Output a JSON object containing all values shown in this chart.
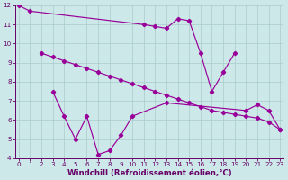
{
  "xlabel": "Windchill (Refroidissement éolien,°C)",
  "bg_color": "#cce8e8",
  "line_color": "#990099",
  "grid_color": "#aacccc",
  "line1_x": [
    0,
    1,
    11,
    12,
    13,
    14,
    15,
    16,
    17,
    18,
    19
  ],
  "line1_y": [
    12.0,
    11.7,
    11.0,
    10.9,
    10.8,
    11.3,
    11.2,
    9.5,
    7.5,
    8.5,
    9.5
  ],
  "line2_x": [
    2,
    3,
    4,
    5,
    6,
    7,
    8,
    9,
    10,
    11,
    12,
    13,
    14,
    15,
    16,
    17,
    18,
    19,
    20,
    21,
    22,
    23
  ],
  "line2_y": [
    9.5,
    9.3,
    9.1,
    8.9,
    8.7,
    8.5,
    8.3,
    8.1,
    7.9,
    7.7,
    7.5,
    7.3,
    7.1,
    6.9,
    6.7,
    6.5,
    6.4,
    6.3,
    6.2,
    6.1,
    5.9,
    5.5
  ],
  "line3_x": [
    3,
    4,
    5,
    6,
    7,
    8,
    9,
    10,
    13,
    20,
    21,
    22,
    23
  ],
  "line3_y": [
    7.5,
    6.2,
    5.0,
    6.2,
    4.2,
    4.4,
    5.2,
    6.2,
    6.9,
    6.5,
    6.8,
    6.5,
    5.5
  ],
  "xlim_min": -0.3,
  "xlim_max": 23.3,
  "ylim_min": 4,
  "ylim_max": 12,
  "yticks": [
    4,
    5,
    6,
    7,
    8,
    9,
    10,
    11,
    12
  ],
  "xticks": [
    0,
    1,
    2,
    3,
    4,
    5,
    6,
    7,
    8,
    9,
    10,
    11,
    12,
    13,
    14,
    15,
    16,
    17,
    18,
    19,
    20,
    21,
    22,
    23
  ],
  "tick_fontsize": 5.2,
  "xlabel_fontsize": 6.2,
  "lw": 0.85,
  "ms": 2.2
}
